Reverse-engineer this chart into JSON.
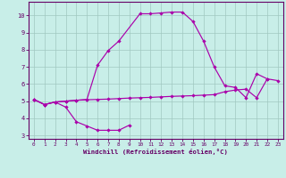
{
  "xlabel": "Windchill (Refroidissement éolien,°C)",
  "xlim": [
    -0.5,
    23.5
  ],
  "ylim": [
    2.8,
    10.8
  ],
  "yticks": [
    3,
    4,
    5,
    6,
    7,
    8,
    9,
    10
  ],
  "xticks": [
    0,
    1,
    2,
    3,
    4,
    5,
    6,
    7,
    8,
    9,
    10,
    11,
    12,
    13,
    14,
    15,
    16,
    17,
    18,
    19,
    20,
    21,
    22,
    23
  ],
  "bg_color": "#c8eee8",
  "line_color": "#aa00aa",
  "grid_color": "#a0c8c0",
  "line1_x": [
    0,
    1,
    2,
    3,
    4,
    5,
    6,
    7,
    8,
    9
  ],
  "line1_y": [
    5.1,
    4.8,
    4.95,
    4.65,
    3.8,
    3.55,
    3.3,
    3.3,
    3.3,
    3.6
  ],
  "line2_x": [
    0,
    1,
    2,
    3,
    4,
    5,
    6,
    7,
    8,
    9,
    10,
    11,
    12,
    13,
    14,
    15,
    16,
    17,
    18,
    19,
    20,
    21,
    22,
    23
  ],
  "line2_y": [
    5.1,
    4.8,
    4.95,
    5.0,
    5.05,
    5.08,
    5.1,
    5.12,
    5.15,
    5.18,
    5.2,
    5.22,
    5.25,
    5.28,
    5.3,
    5.32,
    5.35,
    5.38,
    5.55,
    5.65,
    5.7,
    5.2,
    6.3,
    6.2
  ],
  "line3_x": [
    0,
    1,
    2,
    3,
    4,
    5,
    6,
    7,
    8,
    10,
    11,
    12,
    13,
    14,
    15,
    16,
    17,
    18,
    19,
    20,
    21,
    22
  ],
  "line3_y": [
    5.1,
    4.8,
    4.95,
    5.0,
    5.05,
    5.1,
    7.1,
    7.95,
    8.5,
    10.1,
    10.1,
    10.15,
    10.2,
    10.2,
    9.65,
    8.5,
    7.0,
    5.9,
    5.8,
    5.2,
    6.6,
    6.3
  ]
}
